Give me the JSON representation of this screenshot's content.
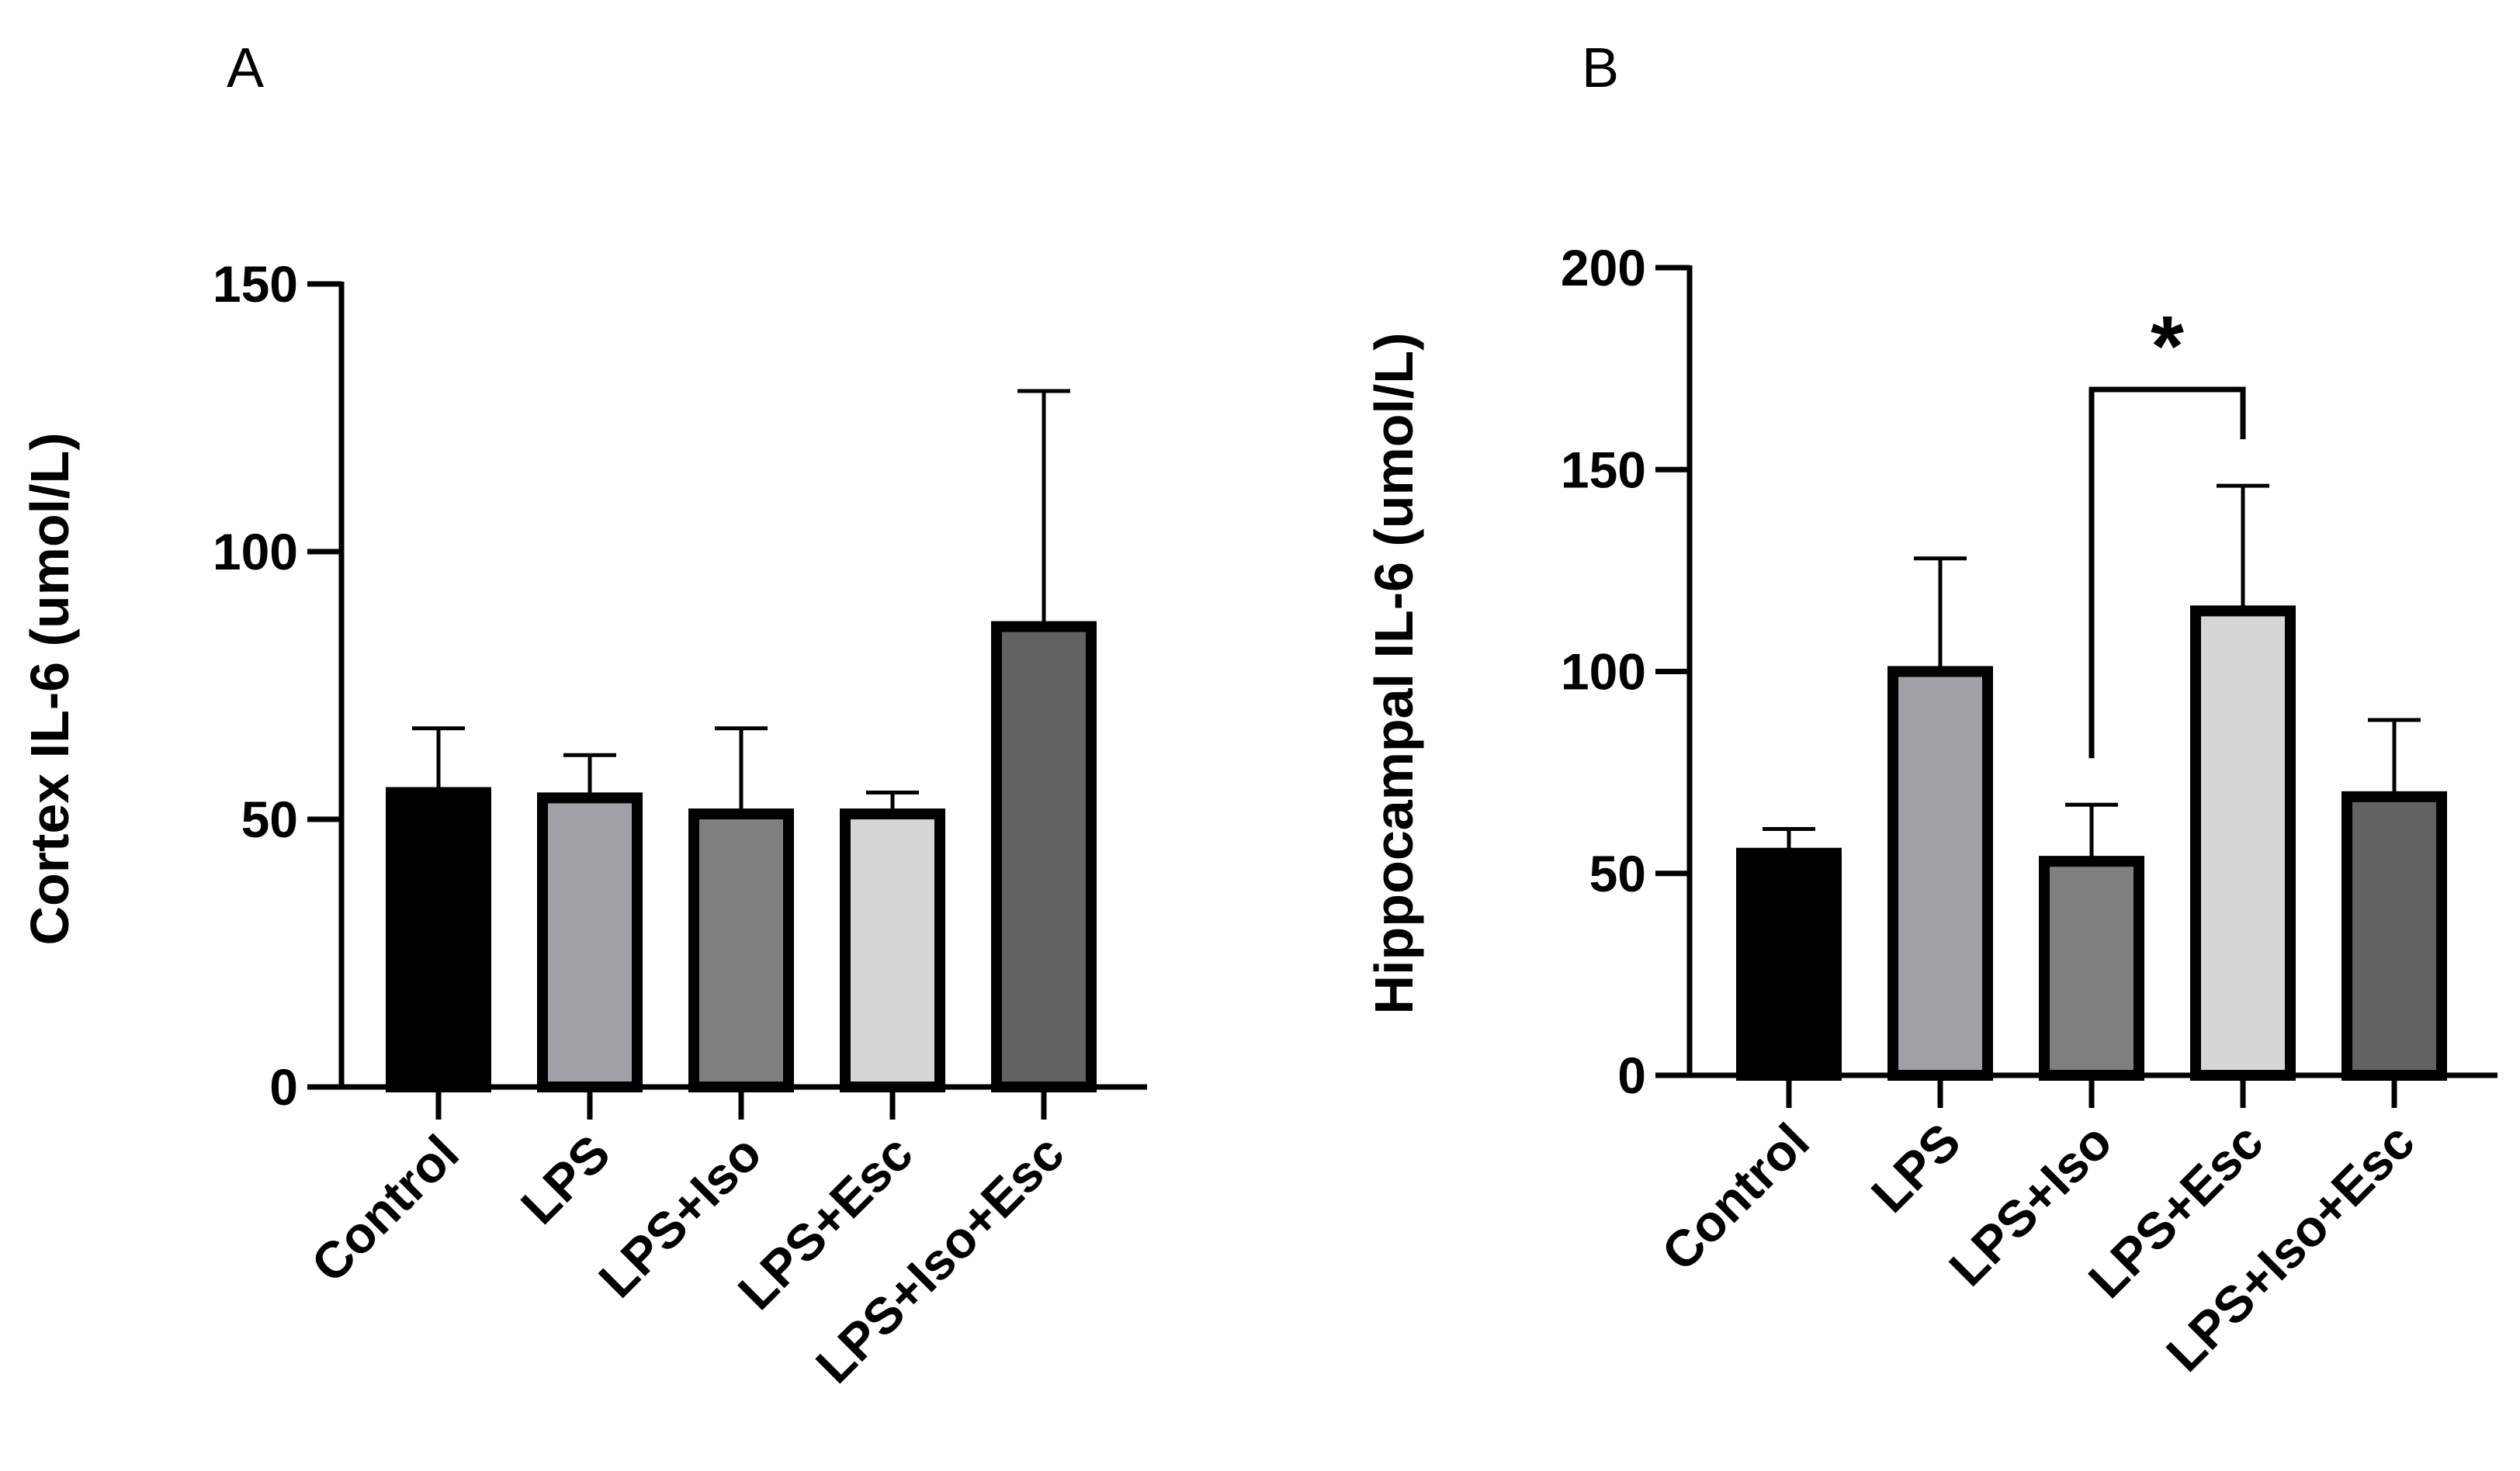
{
  "figure": {
    "panels": [
      "A",
      "B"
    ]
  },
  "chart_data": [
    {
      "panel": "A",
      "type": "bar",
      "categories": [
        "Control",
        "LPS",
        "LPS+Iso",
        "LPS+Esc",
        "LPS+Iso+Esc"
      ],
      "values": [
        55,
        54,
        51,
        51,
        86
      ],
      "error_upper": [
        67,
        62,
        67,
        55,
        130
      ],
      "colors": [
        "#000000",
        "#a0a0a6",
        "#7f7f7f",
        "#d6d6d6",
        "#626262"
      ],
      "ylabel": "Cortex IL-6 (umol/L)",
      "ylim": [
        0,
        150
      ],
      "yticks": [
        0,
        50,
        100,
        150
      ],
      "ytick_labels": [
        "0",
        "50",
        "100",
        "150"
      ],
      "significance": []
    },
    {
      "panel": "B",
      "type": "bar",
      "categories": [
        "Control",
        "LPS",
        "LPS+Iso",
        "LPS+Esc",
        "LPS+Iso+Esc"
      ],
      "values": [
        55,
        100,
        53,
        115,
        69
      ],
      "error_upper": [
        61,
        128,
        67,
        146,
        88
      ],
      "colors": [
        "#000000",
        "#a0a0a6",
        "#7f7f7f",
        "#d6d6d6",
        "#626262"
      ],
      "ylabel": "Hippocampal IL-6 (umol/L)",
      "ylim": [
        0,
        200
      ],
      "yticks": [
        0,
        50,
        100,
        150,
        200
      ],
      "ytick_labels": [
        "0",
        "50",
        "100",
        "150",
        "200"
      ],
      "significance": [
        {
          "from": "LPS+Iso",
          "to": "LPS+Esc",
          "label": "*"
        }
      ]
    }
  ]
}
